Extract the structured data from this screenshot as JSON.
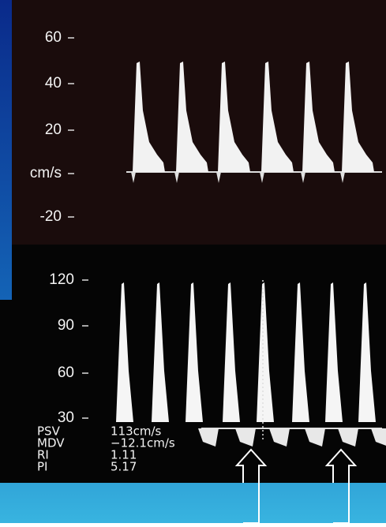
{
  "top_panel": {
    "ticks": [
      "60",
      "40",
      "20",
      "cm/s",
      "-20"
    ]
  },
  "bottom_panel": {
    "ticks": [
      "120",
      "90",
      "60",
      "30"
    ]
  },
  "measurements": [
    {
      "label": "PSV",
      "value": "113cm/s"
    },
    {
      "label": "MDV",
      "value": "−12.1cm/s"
    },
    {
      "label": "RI",
      "value": "1.11"
    },
    {
      "label": "PI",
      "value": "5.17"
    }
  ]
}
